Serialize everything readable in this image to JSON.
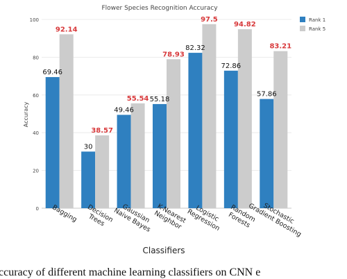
{
  "chart_data": {
    "type": "bar",
    "title": "Flower Species Recognition Accuracy",
    "xlabel": "Classifiers",
    "ylabel": "Accuracy",
    "ylim": [
      0,
      100
    ],
    "yticks": [
      0,
      20,
      40,
      60,
      80,
      100
    ],
    "grid": true,
    "legend_position": "top-right",
    "categories": [
      "Bagging",
      "Decision Trees",
      "Gaussian Naive Bayes",
      "K-Nearest Neighbor",
      "Logistic Regression",
      "Random Forests",
      "Stochastic Gradient Boosting"
    ],
    "category_lines": [
      [
        "Bagging"
      ],
      [
        "Decision",
        "Trees"
      ],
      [
        "Gaussian",
        "Naive Bayes"
      ],
      [
        "K-Nearest",
        "Neighbor"
      ],
      [
        "Logistic",
        "Regression"
      ],
      [
        "Random",
        "Forests"
      ],
      [
        "Stochastic",
        "Gradient Boosting"
      ]
    ],
    "series": [
      {
        "name": "Rank 1",
        "color": "#2f80c0",
        "label_color": "#111111",
        "values": [
          69.46,
          30,
          49.46,
          55.18,
          82.32,
          72.86,
          57.86
        ],
        "labels": [
          "69.46",
          "30",
          "49.46",
          "55.18",
          "82.32",
          "72.86",
          "57.86"
        ]
      },
      {
        "name": "Rank 5",
        "color": "#cccccc",
        "label_color": "#d8393b",
        "values": [
          92.14,
          38.57,
          55.54,
          78.93,
          97.5,
          94.82,
          83.21
        ],
        "labels": [
          "92.14",
          "38.57",
          "55.54",
          "78.93",
          "97.5",
          "94.82",
          "83.21"
        ]
      }
    ]
  },
  "caption": "ccuracy of different machine learning classifiers on CNN e"
}
